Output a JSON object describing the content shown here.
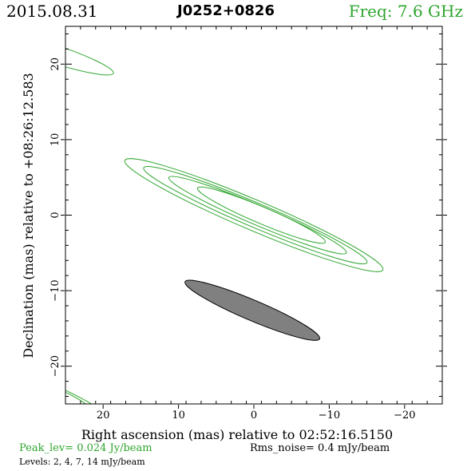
{
  "header": {
    "date": "2015.08.31",
    "source": "J0252+0826",
    "frequency": "Freq:  7.6  GHz"
  },
  "footer": {
    "peak": "Peak_lev=  0.024 Jy/beam",
    "rms": "Rms_noise=   0.4  mJy/beam",
    "levels": "Levels:   2,    4,    7,   14  mJy/beam"
  },
  "colors": {
    "contour": "#2ea52e",
    "beam_fill": "#808080",
    "header_accent": "#2ea52e"
  },
  "chart_data": {
    "type": "contour",
    "title": "J0252+0826",
    "xlabel": "Right ascension (mas) relative to 02:52:16.5150",
    "ylabel": "Declination (mas) relative to +08:26:12.583",
    "xlim": [
      25,
      -25
    ],
    "ylim": [
      -25,
      25
    ],
    "x_ticks": [
      20,
      10,
      0,
      -10,
      -20
    ],
    "x_tick_labels": [
      "20",
      "10",
      "0",
      "−10",
      "−20"
    ],
    "y_ticks": [
      20,
      10,
      0,
      -10,
      -20
    ],
    "y_tick_labels": [
      "20",
      "10",
      "0",
      "−10",
      "−20"
    ],
    "contour_levels_mJy": [
      2,
      4,
      7,
      14
    ],
    "peak_Jy_per_beam": 0.024,
    "rms_noise_mJy_per_beam": 0.4,
    "contours": [
      {
        "level": 2,
        "cx": 0,
        "cy": 0,
        "a": 18.6,
        "b": 2.0,
        "pa_deg": 23
      },
      {
        "level": 4,
        "cx": -0.2,
        "cy": 0,
        "a": 16.1,
        "b": 1.6,
        "pa_deg": 23
      },
      {
        "level": 7,
        "cx": -0.5,
        "cy": 0,
        "a": 12.8,
        "b": 1.3,
        "pa_deg": 23
      },
      {
        "level": 14,
        "cx": -1.0,
        "cy": 0,
        "a": 9.2,
        "b": 1.1,
        "pa_deg": 23
      }
    ],
    "sidelobes": [
      {
        "cx": 27,
        "cy": 21.5,
        "a": 8.8,
        "b": 1.2,
        "pa_deg": 18
      },
      {
        "cx": 26,
        "cy": -24.5,
        "a": 9.2,
        "b": 1.6,
        "pa_deg": 25
      },
      {
        "cx": 24.5,
        "cy": -24.6,
        "a": 4.0,
        "b": 0.8,
        "pa_deg": 28
      }
    ],
    "beam": {
      "cx": 0.2,
      "cy": -12.6,
      "a": 9.7,
      "b": 1.35,
      "pa_deg": 23
    },
    "grid": false,
    "legend": "none"
  }
}
